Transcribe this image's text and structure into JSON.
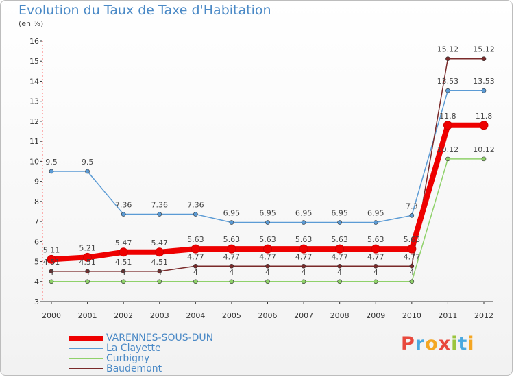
{
  "header": {
    "title": "Evolution du Taux de Taxe d'Habitation",
    "subtitle": "(en %)"
  },
  "logo": {
    "text": "Proxiti",
    "letter_colors": [
      "#e8483c",
      "#4aa9e0",
      "#f4a623",
      "#e8483c",
      "#9bc53d",
      "#4aa9e0",
      "#f4a623"
    ]
  },
  "chart_data": {
    "type": "line",
    "title": "Evolution du Taux de Taxe d'Habitation",
    "subtitle": "(en %)",
    "xlabel": "",
    "ylabel": "",
    "categories": [
      "2000",
      "2001",
      "2002",
      "2003",
      "2004",
      "2005",
      "2006",
      "2007",
      "2008",
      "2009",
      "2010",
      "2011",
      "2012"
    ],
    "ylim": [
      3,
      16
    ],
    "yticks": [
      3,
      4,
      5,
      6,
      7,
      8,
      9,
      10,
      11,
      12,
      13,
      14,
      15,
      16
    ],
    "grid": false,
    "legend_position": "bottom-left",
    "series": [
      {
        "name": "VARENNES-SOUS-DUN",
        "color": "#ee0000",
        "values": [
          5.11,
          5.21,
          5.47,
          5.47,
          5.63,
          5.63,
          5.63,
          5.63,
          5.63,
          5.63,
          5.63,
          11.8,
          11.8
        ],
        "labels": [
          "5.11",
          "5.21",
          "5.47",
          "5.47",
          "5.63",
          "5.63",
          "5.63",
          "5.63",
          "5.63",
          "5.63",
          "5.63",
          "11.8",
          "11.8"
        ]
      },
      {
        "name": "La Clayette",
        "color": "#5b9bd5",
        "values": [
          9.5,
          9.5,
          7.36,
          7.36,
          7.36,
          6.95,
          6.95,
          6.95,
          6.95,
          6.95,
          7.3,
          13.53,
          13.53
        ],
        "labels": [
          "9.5",
          "9.5",
          "7.36",
          "7.36",
          "7.36",
          "6.95",
          "6.95",
          "6.95",
          "6.95",
          "6.95",
          "7.3",
          "13.53",
          "13.53"
        ]
      },
      {
        "name": "Curbigny",
        "color": "#8fd16a",
        "values": [
          4,
          4,
          4,
          4,
          4,
          4,
          4,
          4,
          4,
          4,
          4,
          10.12,
          10.12
        ],
        "labels": [
          "4",
          "4",
          "4",
          "4",
          "4",
          "4",
          "4",
          "4",
          "4",
          "4",
          "4",
          "10.12",
          "10.12"
        ]
      },
      {
        "name": "Baudemont",
        "color": "#7a2a2a",
        "values": [
          4.51,
          4.51,
          4.51,
          4.51,
          4.77,
          4.77,
          4.77,
          4.77,
          4.77,
          4.77,
          4.77,
          15.12,
          15.12
        ],
        "labels": [
          "4.51",
          "4.51",
          "4.51",
          "4.51",
          "4.77",
          "4.77",
          "4.77",
          "4.77",
          "4.77",
          "4.77",
          "4.77",
          "15.12",
          "15.12"
        ]
      }
    ]
  }
}
